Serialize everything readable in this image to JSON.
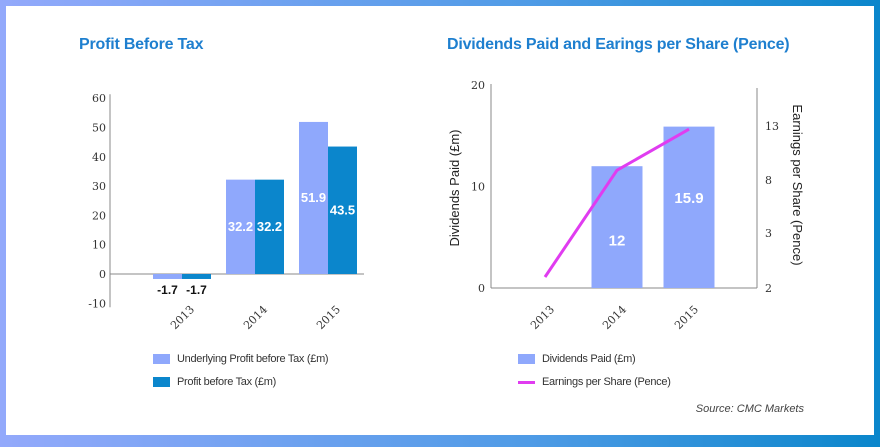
{
  "colors": {
    "light_bar": "#8fa8fc",
    "dark_bar": "#0b86cc",
    "line": "#e03cf0",
    "title": "#1e7fcf"
  },
  "chart_data": [
    {
      "type": "bar",
      "title": "Profit Before Tax",
      "categories": [
        "2013",
        "2014",
        "2015"
      ],
      "yticks": [
        "60",
        "50",
        "40",
        "30",
        "20",
        "10",
        "0",
        "-10"
      ],
      "ylim": [
        -10,
        60
      ],
      "series": [
        {
          "name": "Underlying Profit before Tax (£m)",
          "values": [
            -1.7,
            32.2,
            51.9
          ],
          "labels": [
            "-1.7",
            "32.2",
            "51.9"
          ]
        },
        {
          "name": "Profit before Tax (£m)",
          "values": [
            -1.7,
            32.2,
            43.5
          ],
          "labels": [
            "-1.7",
            "32.2",
            "43.5"
          ]
        }
      ]
    },
    {
      "type": "bar+line",
      "title": "Dividends Paid and Earings per Share (Pence)",
      "categories": [
        "2013",
        "2014",
        "2015"
      ],
      "ylabel": "Dividends Paid (£m)",
      "ylabel_right": "Earnings per Share (Pence)",
      "yticks": [
        "20",
        "10",
        "0"
      ],
      "ylim": [
        0,
        20
      ],
      "yticks_right": [
        "13",
        "8",
        "3",
        "2"
      ],
      "series": [
        {
          "name": "Dividends Paid (£m)",
          "type": "bar",
          "values": [
            null,
            12,
            15.9
          ],
          "labels": [
            "",
            "12",
            "15.9"
          ]
        },
        {
          "name": "Earnings per Share (Pence)",
          "type": "line",
          "axis": "right",
          "values": [
            2.2,
            8.9,
            12.7
          ]
        }
      ]
    }
  ],
  "source": "Source: CMC Markets"
}
